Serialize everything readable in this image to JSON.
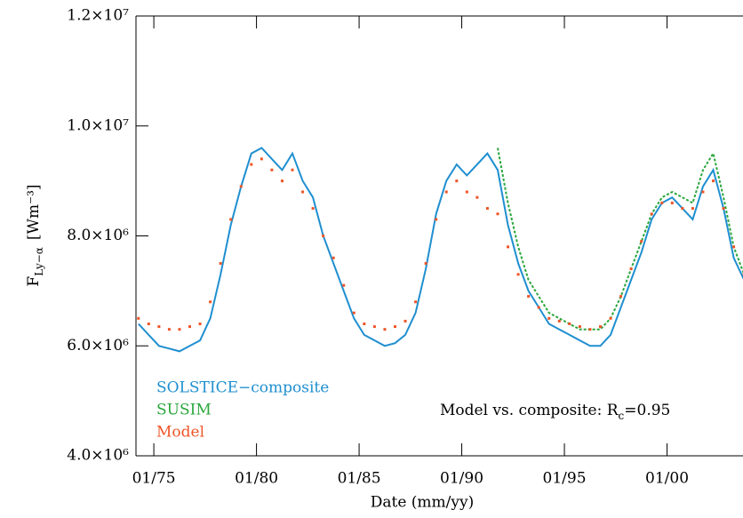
{
  "chart_data": {
    "type": "line",
    "ylabel": "F",
    "ylabel_sub": "Ly−α",
    "ylabel_unit": "[Wm⁻³]",
    "xlabel": "Date (mm/yy)",
    "annotation": {
      "text": "Model vs. composite: R",
      "sub": "c",
      "rest": "=0.95"
    },
    "xlim": [
      1974.13,
      2003.7
    ],
    "ylim": [
      4000000,
      12000000
    ],
    "xticks": [
      {
        "value": 1975,
        "label": "01/75"
      },
      {
        "value": 1980,
        "label": "01/80"
      },
      {
        "value": 1985,
        "label": "01/85"
      },
      {
        "value": 1990,
        "label": "01/90"
      },
      {
        "value": 1995,
        "label": "01/95"
      },
      {
        "value": 2000,
        "label": "01/00"
      }
    ],
    "yticks": [
      {
        "value": 4000000,
        "label": "4.0×10⁶"
      },
      {
        "value": 6000000,
        "label": "6.0×10⁶"
      },
      {
        "value": 8000000,
        "label": "8.0×10⁶"
      },
      {
        "value": 10000000,
        "label": "1.0×10⁷"
      },
      {
        "value": 12000000,
        "label": "1.2×10⁷"
      }
    ],
    "x": [
      1974.25,
      1974.75,
      1975.25,
      1975.75,
      1976.25,
      1976.75,
      1977.25,
      1977.75,
      1978.25,
      1978.75,
      1979.25,
      1979.75,
      1980.25,
      1980.75,
      1981.25,
      1981.75,
      1982.25,
      1982.75,
      1983.25,
      1983.75,
      1984.25,
      1984.75,
      1985.25,
      1985.75,
      1986.25,
      1986.75,
      1987.25,
      1987.75,
      1988.25,
      1988.75,
      1989.25,
      1989.75,
      1990.25,
      1990.75,
      1991.25,
      1991.75,
      1992.25,
      1992.75,
      1993.25,
      1993.75,
      1994.25,
      1994.75,
      1995.25,
      1995.75,
      1996.25,
      1996.75,
      1997.25,
      1997.75,
      1998.25,
      1998.75,
      1999.25,
      1999.75,
      2000.25,
      2000.75,
      2001.25,
      2001.75,
      2002.25,
      2002.75,
      2003.25,
      2003.75
    ],
    "series": [
      {
        "name": "SOLSTICE−composite",
        "color": "#1f8fd0",
        "style": "line",
        "values": [
          6400000.0,
          6200000.0,
          6000000.0,
          5950000.0,
          5900000.0,
          6000000.0,
          6100000.0,
          6500000.0,
          7300000.0,
          8200000.0,
          8900000.0,
          9500000.0,
          9600000.0,
          9400000.0,
          9200000.0,
          9500000.0,
          9000000.0,
          8700000.0,
          8000000.0,
          7500000.0,
          7000000.0,
          6500000.0,
          6200000.0,
          6100000.0,
          6000000.0,
          6050000.0,
          6200000.0,
          6600000.0,
          7400000.0,
          8400000.0,
          9000000.0,
          9300000.0,
          9100000.0,
          9300000.0,
          9500000.0,
          9200000.0,
          8200000.0,
          7500000.0,
          7000000.0,
          6700000.0,
          6400000.0,
          6300000.0,
          6200000.0,
          6100000.0,
          6000000.0,
          6000000.0,
          6200000.0,
          6700000.0,
          7200000.0,
          7700000.0,
          8300000.0,
          8600000.0,
          8700000.0,
          8500000.0,
          8300000.0,
          8900000.0,
          9200000.0,
          8500000.0,
          7600000.0,
          7200000.0
        ]
      },
      {
        "name": "SUSIM",
        "color": "#2aa63c",
        "style": "dash",
        "values": [
          null,
          null,
          null,
          null,
          null,
          null,
          null,
          null,
          null,
          null,
          null,
          null,
          null,
          null,
          null,
          null,
          null,
          null,
          null,
          null,
          null,
          null,
          null,
          null,
          null,
          null,
          null,
          null,
          null,
          null,
          null,
          null,
          null,
          null,
          null,
          9600000.0,
          8600000.0,
          7800000.0,
          7200000.0,
          6900000.0,
          6600000.0,
          6500000.0,
          6400000.0,
          6300000.0,
          6300000.0,
          6300000.0,
          6500000.0,
          6900000.0,
          7400000.0,
          7900000.0,
          8400000.0,
          8700000.0,
          8800000.0,
          8700000.0,
          8600000.0,
          9200000.0,
          9500000.0,
          8700000.0,
          7800000.0,
          7300000.0
        ]
      },
      {
        "name": "Model",
        "color": "#ee5527",
        "style": "dots",
        "values": [
          6500000.0,
          6400000.0,
          6350000.0,
          6300000.0,
          6300000.0,
          6350000.0,
          6400000.0,
          6800000.0,
          7500000.0,
          8300000.0,
          8900000.0,
          9300000.0,
          9400000.0,
          9200000.0,
          9000000.0,
          9200000.0,
          8800000.0,
          8500000.0,
          8000000.0,
          7600000.0,
          7100000.0,
          6600000.0,
          6400000.0,
          6350000.0,
          6300000.0,
          6350000.0,
          6450000.0,
          6800000.0,
          7500000.0,
          8300000.0,
          8800000.0,
          9000000.0,
          8800000.0,
          8700000.0,
          8500000.0,
          8400000.0,
          7800000.0,
          7300000.0,
          6900000.0,
          6700000.0,
          6500000.0,
          6450000.0,
          6400000.0,
          6350000.0,
          6300000.0,
          6350000.0,
          6500000.0,
          6900000.0,
          7400000.0,
          7900000.0,
          8400000.0,
          8600000.0,
          8600000.0,
          8500000.0,
          8500000.0,
          8800000.0,
          9000000.0,
          8500000.0,
          7800000.0,
          7300000.0
        ]
      }
    ]
  }
}
